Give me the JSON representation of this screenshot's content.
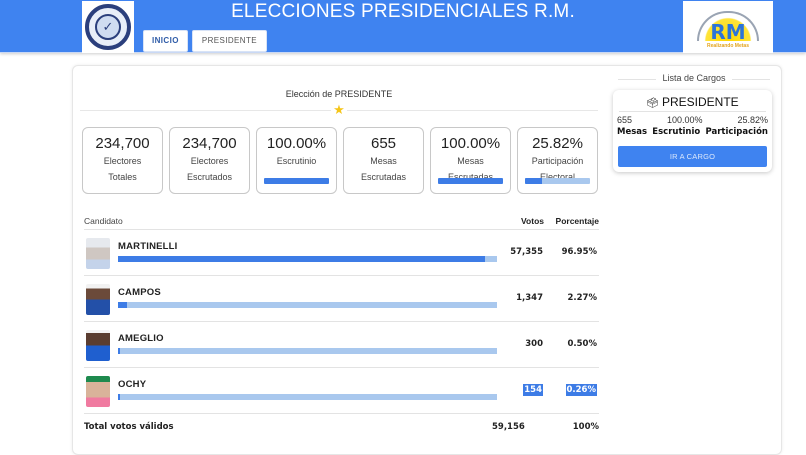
{
  "header": {
    "title": "ELECCIONES PRESIDENCIALES R.M.",
    "left_logo": "tribunal-electoral-seal",
    "right_logo": {
      "text": "RM",
      "tagline": "Realizando Metas"
    },
    "nav": [
      {
        "label": "INICIO",
        "active": true
      },
      {
        "label": "PRESIDENTE",
        "active": false
      }
    ],
    "color": "#3f83f0"
  },
  "election": {
    "title": "Elección de PRESIDENTE",
    "star_icon": "star-icon"
  },
  "stats": [
    {
      "value": "234,700",
      "label1": "Electores",
      "label2": "Totales",
      "bar": null
    },
    {
      "value": "234,700",
      "label1": "Electores",
      "label2": "Escrutados",
      "bar": null
    },
    {
      "value": "100.00%",
      "label1": "Escrutinio",
      "label2": "",
      "bar": 100
    },
    {
      "value": "655",
      "label1": "Mesas",
      "label2": "Escrutadas",
      "bar": null
    },
    {
      "value": "100.00%",
      "label1": "Mesas",
      "label2": "Escrutadas",
      "bar": 100
    },
    {
      "value": "25.82%",
      "label1": "Participación",
      "label2": "Electoral",
      "bar": 25.82
    }
  ],
  "results": {
    "headers": {
      "candidate": "Candidato",
      "votes": "Votos",
      "pct": "Porcentaje"
    },
    "rows": [
      {
        "name": "MARTINELLI",
        "votes": "57,355",
        "pct": "96.95%",
        "bar": 96.95,
        "selected": false
      },
      {
        "name": "CAMPOS",
        "votes": "1,347",
        "pct": "2.27%",
        "bar": 2.27,
        "selected": false
      },
      {
        "name": "AMEGLIO",
        "votes": "300",
        "pct": "0.50%",
        "bar": 0.5,
        "selected": false
      },
      {
        "name": "OCHY",
        "votes": "154",
        "pct": "0.26%",
        "bar": 0.26,
        "selected": true
      }
    ],
    "total": {
      "label": "Total votos válidos",
      "votes": "59,156",
      "pct": "100%"
    }
  },
  "cargos": {
    "title": "Lista de Cargos",
    "card": {
      "icon": "ballot-box-icon",
      "name": "PRESIDENTE",
      "values": [
        "655",
        "100.00%",
        "25.82%"
      ],
      "labels": [
        "Mesas",
        "Escrutinio",
        "Participación"
      ],
      "button": "IR A CARGO"
    }
  }
}
